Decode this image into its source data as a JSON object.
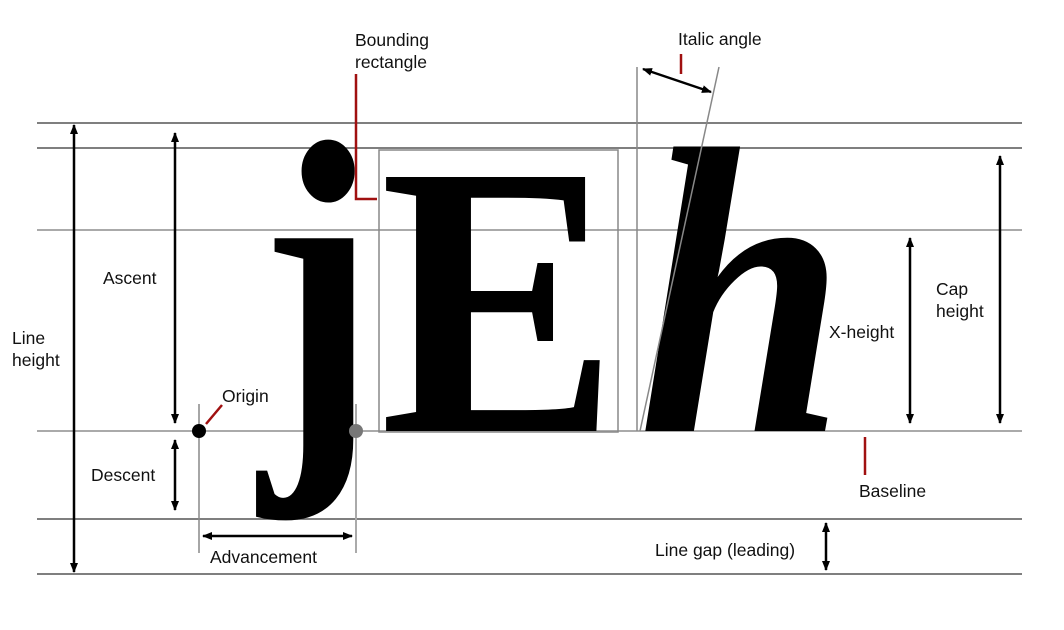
{
  "labels": {
    "bounding_rectangle_line1": "Bounding",
    "bounding_rectangle_line2": "rectangle",
    "italic_angle": "Italic angle",
    "ascent": "Ascent",
    "line_height_line1": "Line",
    "line_height_line2": "height",
    "origin": "Origin",
    "descent": "Descent",
    "advancement": "Advancement",
    "x_height": "X-height",
    "cap_height_line1": "Cap",
    "cap_height_line2": "height",
    "baseline": "Baseline",
    "line_gap": "Line gap (leading)"
  },
  "glyphs": {
    "j": "j",
    "E": "E",
    "h": "h"
  },
  "colors": {
    "line": "#555555",
    "guide": "#b5b5b5",
    "callout": "#a01010",
    "glyph": "#000000",
    "text": "#111111"
  }
}
